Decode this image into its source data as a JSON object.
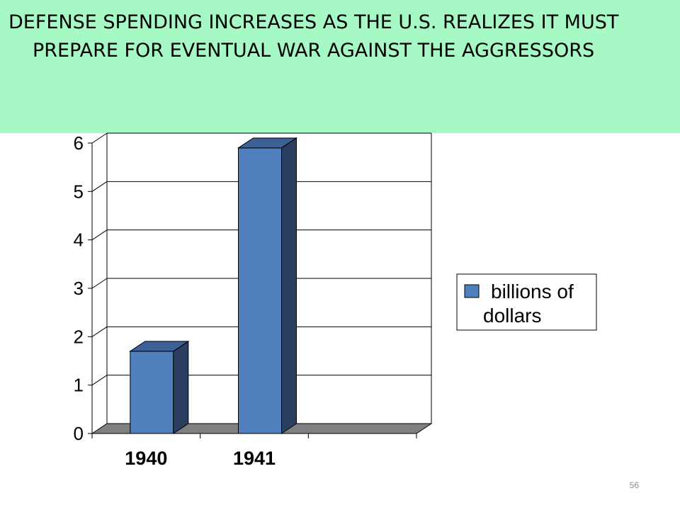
{
  "slide": {
    "title": "DEFENSE SPENDING INCREASES AS THE U.S. REALIZES IT MUST PREPARE FOR EVENTUAL WAR AGAINST THE AGGRESSORS",
    "page_number": "56",
    "banner_color": "#a6f9c4"
  },
  "chart_data": {
    "type": "bar",
    "categories": [
      "1940",
      "1941"
    ],
    "series": [
      {
        "name": "billions of dollars",
        "values": [
          1.7,
          5.9
        ],
        "color": "#4f7fbd"
      }
    ],
    "title": "",
    "xlabel": "",
    "ylabel": "",
    "ylim": [
      0,
      6
    ],
    "yticks": [
      "0",
      "1",
      "2",
      "3",
      "4",
      "5",
      "6"
    ],
    "grid": true,
    "legend": {
      "position": "right",
      "lines": [
        "billions of",
        "dollars"
      ]
    }
  }
}
